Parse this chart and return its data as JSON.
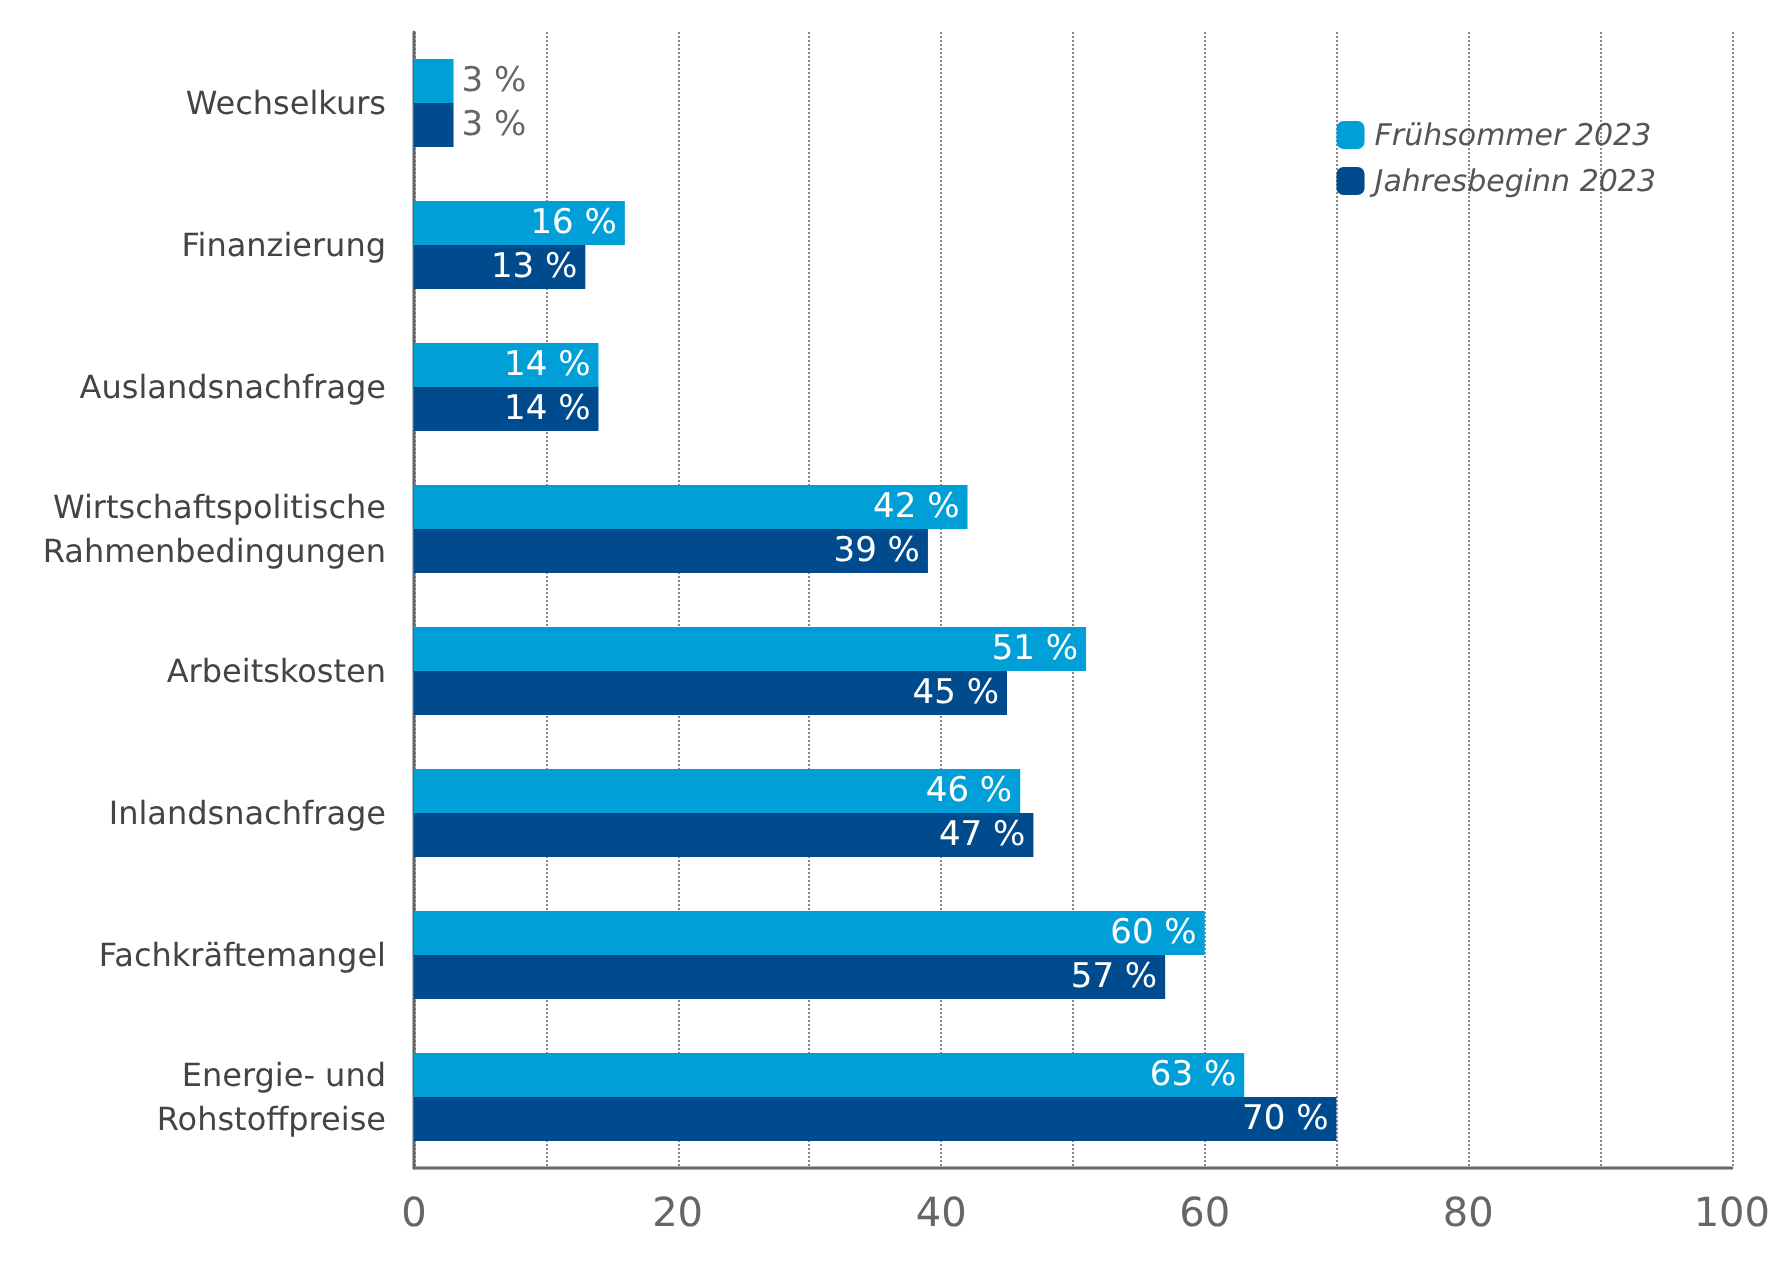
{
  "chart_data": {
    "type": "bar",
    "orientation": "horizontal",
    "categories": [
      "Wechselkurs",
      "Finanzierung",
      "Auslandsnachfrage",
      "Wirtschaftspolitische\nRahmenbedingungen",
      "Arbeitskosten",
      "Inlandsnachfrage",
      "Fachkräftemangel",
      "Energie- und\nRohstoffpreise"
    ],
    "series": [
      {
        "name": "Frühsommer 2023",
        "color": "#009fd8",
        "values": [
          3,
          16,
          14,
          42,
          51,
          46,
          60,
          63
        ],
        "value_labels": [
          "3 %",
          "16 %",
          "14 %",
          "42 %",
          "51 %",
          "46 %",
          "60 %",
          "63 %"
        ]
      },
      {
        "name": "Jahresbeginn 2023",
        "color": "#004b8d",
        "values": [
          3,
          13,
          14,
          39,
          45,
          47,
          57,
          70
        ],
        "value_labels": [
          "3 %",
          "13 %",
          "14 %",
          "39 %",
          "45 %",
          "47 %",
          "57 %",
          "70 %"
        ]
      }
    ],
    "xlim": [
      0,
      100
    ],
    "xticks": [
      0,
      {
        "value": 10,
        "label": null
      },
      20,
      {
        "value": 30,
        "label": null
      },
      40,
      {
        "value": 50,
        "label": null
      },
      60,
      {
        "value": 70,
        "label": null
      },
      80,
      {
        "value": 90,
        "label": null
      },
      100
    ],
    "grid": "x",
    "legend": "top right"
  }
}
